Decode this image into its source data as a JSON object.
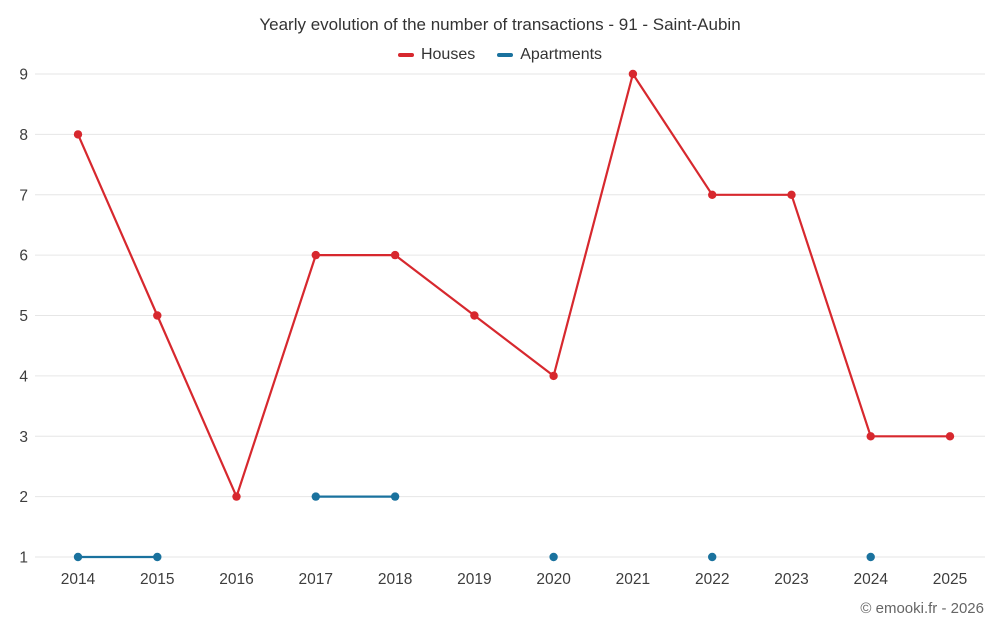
{
  "footer": {
    "credit": "© emooki.fr - 2026"
  },
  "chart_data": {
    "type": "line",
    "title": "Yearly evolution of the number of transactions - 91 - Saint-Aubin",
    "categories": [
      "2014",
      "2015",
      "2016",
      "2017",
      "2018",
      "2019",
      "2020",
      "2021",
      "2022",
      "2023",
      "2024",
      "2025"
    ],
    "series": [
      {
        "name": "Houses",
        "color": "#d7282e",
        "values": [
          8,
          5,
          2,
          6,
          6,
          5,
          4,
          9,
          7,
          7,
          3,
          3
        ]
      },
      {
        "name": "Apartments",
        "color": "#1a729e",
        "values": [
          1,
          1,
          null,
          2,
          2,
          null,
          1,
          null,
          1,
          null,
          1,
          null
        ]
      }
    ],
    "xlabel": "",
    "ylabel": "",
    "ylim": [
      1,
      9
    ],
    "yticks": [
      1,
      2,
      3,
      4,
      5,
      6,
      7,
      8,
      9
    ],
    "grid": true,
    "legend_position": "top",
    "grid_color": "#e6e6e6",
    "tick_label_color": "#3d3d3d"
  }
}
